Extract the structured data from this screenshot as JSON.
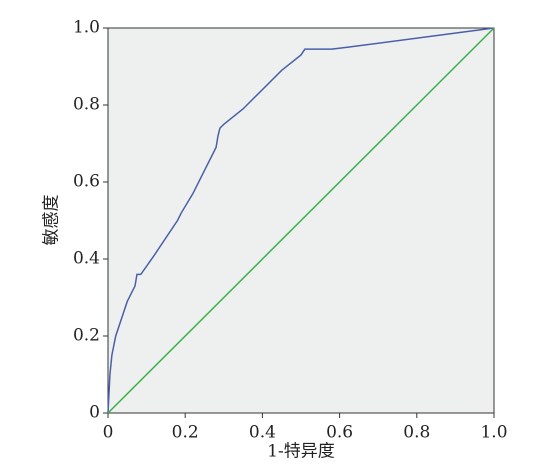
{
  "chart_data": {
    "type": "line",
    "xlabel": "1-特异度",
    "ylabel": "敏感度",
    "xlim": [
      0,
      1
    ],
    "ylim": [
      0,
      1
    ],
    "xticks": [
      0,
      0.2,
      0.4,
      0.6,
      0.8,
      {
        "value": 1,
        "label": "1.0"
      }
    ],
    "yticks": [
      0,
      0.2,
      0.4,
      0.6,
      0.8,
      {
        "value": 1,
        "label": "1.0"
      }
    ],
    "background": "#eef0f0",
    "series": [
      {
        "color": "#4a5fa8",
        "x": [
          0,
          0.005,
          0.01,
          0.02,
          0.04,
          0.05,
          0.07,
          0.075,
          0.085,
          0.12,
          0.18,
          0.19,
          0.22,
          0.25,
          0.28,
          0.285,
          0.29,
          0.3,
          0.35,
          0.4,
          0.45,
          0.5,
          0.51,
          0.58,
          0.62,
          1
        ],
        "values": [
          0,
          0.1,
          0.15,
          0.2,
          0.26,
          0.29,
          0.33,
          0.36,
          0.36,
          0.41,
          0.5,
          0.52,
          0.57,
          0.63,
          0.69,
          0.72,
          0.74,
          0.75,
          0.79,
          0.84,
          0.89,
          0.93,
          0.945,
          0.945,
          0.95,
          1
        ]
      },
      {
        "color": "#3cb04a",
        "x": [
          0,
          1
        ],
        "values": [
          0,
          1
        ]
      }
    ]
  }
}
